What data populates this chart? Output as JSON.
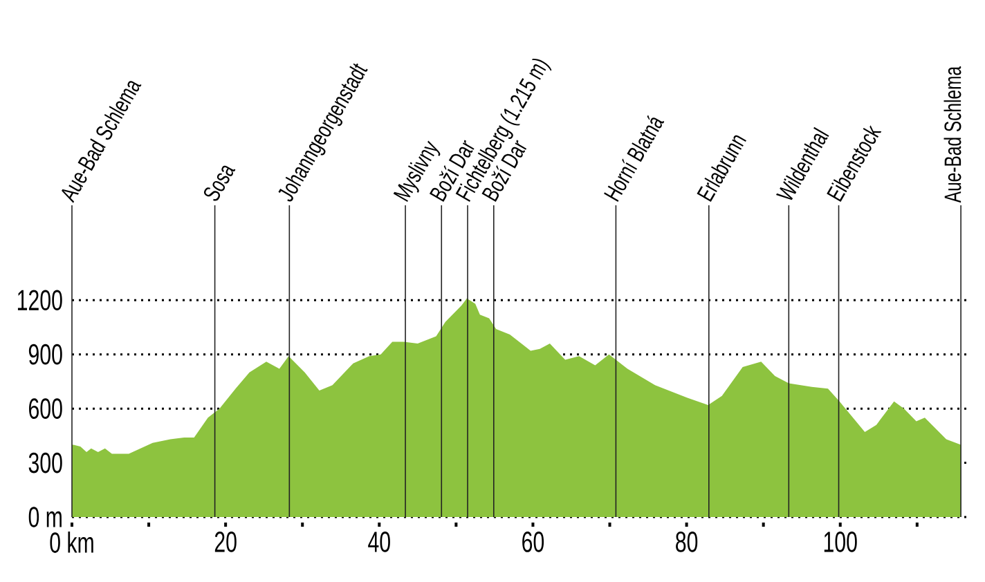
{
  "chart_data": {
    "type": "area",
    "x": [
      0,
      0.2,
      1.1,
      1.9,
      2.5,
      3.4,
      4.3,
      5.2,
      7.4,
      10.5,
      12.8,
      14.6,
      15.9,
      17.7,
      19.2,
      21.3,
      23.1,
      25.3,
      27.0,
      28.2,
      30.3,
      32.2,
      33.9,
      36.6,
      38.7,
      40.2,
      41.7,
      43.2,
      45.0,
      47.4,
      48.6,
      50.7,
      51.4,
      52.5,
      53.1,
      54.3,
      55.2,
      57.0,
      59.7,
      60.9,
      62.2,
      64.2,
      66.0,
      68.1,
      69.9,
      72.3,
      75.9,
      80.1,
      82.8,
      84.6,
      87.3,
      89.7,
      91.5,
      93.3,
      96.3,
      98.4,
      99.9,
      103.2,
      104.7,
      107.0,
      108.3,
      109.9,
      111.0,
      113.8,
      115.7
    ],
    "values": [
      400,
      400,
      390,
      360,
      380,
      360,
      380,
      350,
      350,
      410,
      430,
      440,
      440,
      550,
      600,
      710,
      800,
      860,
      820,
      890,
      800,
      700,
      730,
      850,
      890,
      900,
      970,
      970,
      960,
      1000,
      1080,
      1170,
      1210,
      1180,
      1120,
      1100,
      1040,
      1010,
      920,
      930,
      960,
      870,
      890,
      840,
      900,
      820,
      730,
      660,
      620,
      670,
      830,
      860,
      780,
      740,
      720,
      710,
      640,
      470,
      510,
      640,
      600,
      530,
      550,
      430,
      400
    ],
    "color": "#8dc33f",
    "xlim": [
      0,
      116.5
    ],
    "ylim": [
      0,
      1725
    ],
    "xticks": [
      {
        "value": 0,
        "label": "0 km"
      },
      {
        "value": 10,
        "label": null
      },
      20,
      {
        "value": 30,
        "label": null
      },
      40,
      {
        "value": 50,
        "label": null
      },
      60,
      {
        "value": 70,
        "label": null
      },
      80,
      {
        "value": 90,
        "label": null
      },
      100,
      {
        "value": 110,
        "label": null
      }
    ],
    "yticks": [
      {
        "value": 0,
        "label": "0 m"
      },
      300,
      600,
      900,
      1200
    ],
    "grid": "y",
    "ref_lines": [
      {
        "axis": "x",
        "value": 0,
        "label": "Aue-Bad Schlema",
        "color": "#222222"
      },
      {
        "axis": "x",
        "value": 18.6,
        "label": "Sosa",
        "color": "#222222"
      },
      {
        "axis": "x",
        "value": 28.3,
        "label": "Johanngeorgenstadt",
        "color": "#222222"
      },
      {
        "axis": "x",
        "value": 43.4,
        "label": "Myslivny",
        "color": "#222222"
      },
      {
        "axis": "x",
        "value": 48.1,
        "label": "Boží Dar",
        "color": "#222222"
      },
      {
        "axis": "x",
        "value": 51.5,
        "label": "Fichtelberg (1.215 m)",
        "color": "#222222"
      },
      {
        "axis": "x",
        "value": 54.9,
        "label": "Boží Dar",
        "color": "#222222"
      },
      {
        "axis": "x",
        "value": 70.8,
        "label": "Horní Blatná",
        "color": "#222222"
      },
      {
        "axis": "x",
        "value": 82.9,
        "label": "Erlabrunn",
        "color": "#222222"
      },
      {
        "axis": "x",
        "value": 93.3,
        "label": "Wildenthal",
        "color": "#222222"
      },
      {
        "axis": "x",
        "value": 99.8,
        "label": "Eibenstock",
        "color": "#222222"
      },
      {
        "axis": "x",
        "value": 115.7,
        "label": "Aue-Bad Schlema",
        "color": "#222222"
      }
    ]
  }
}
